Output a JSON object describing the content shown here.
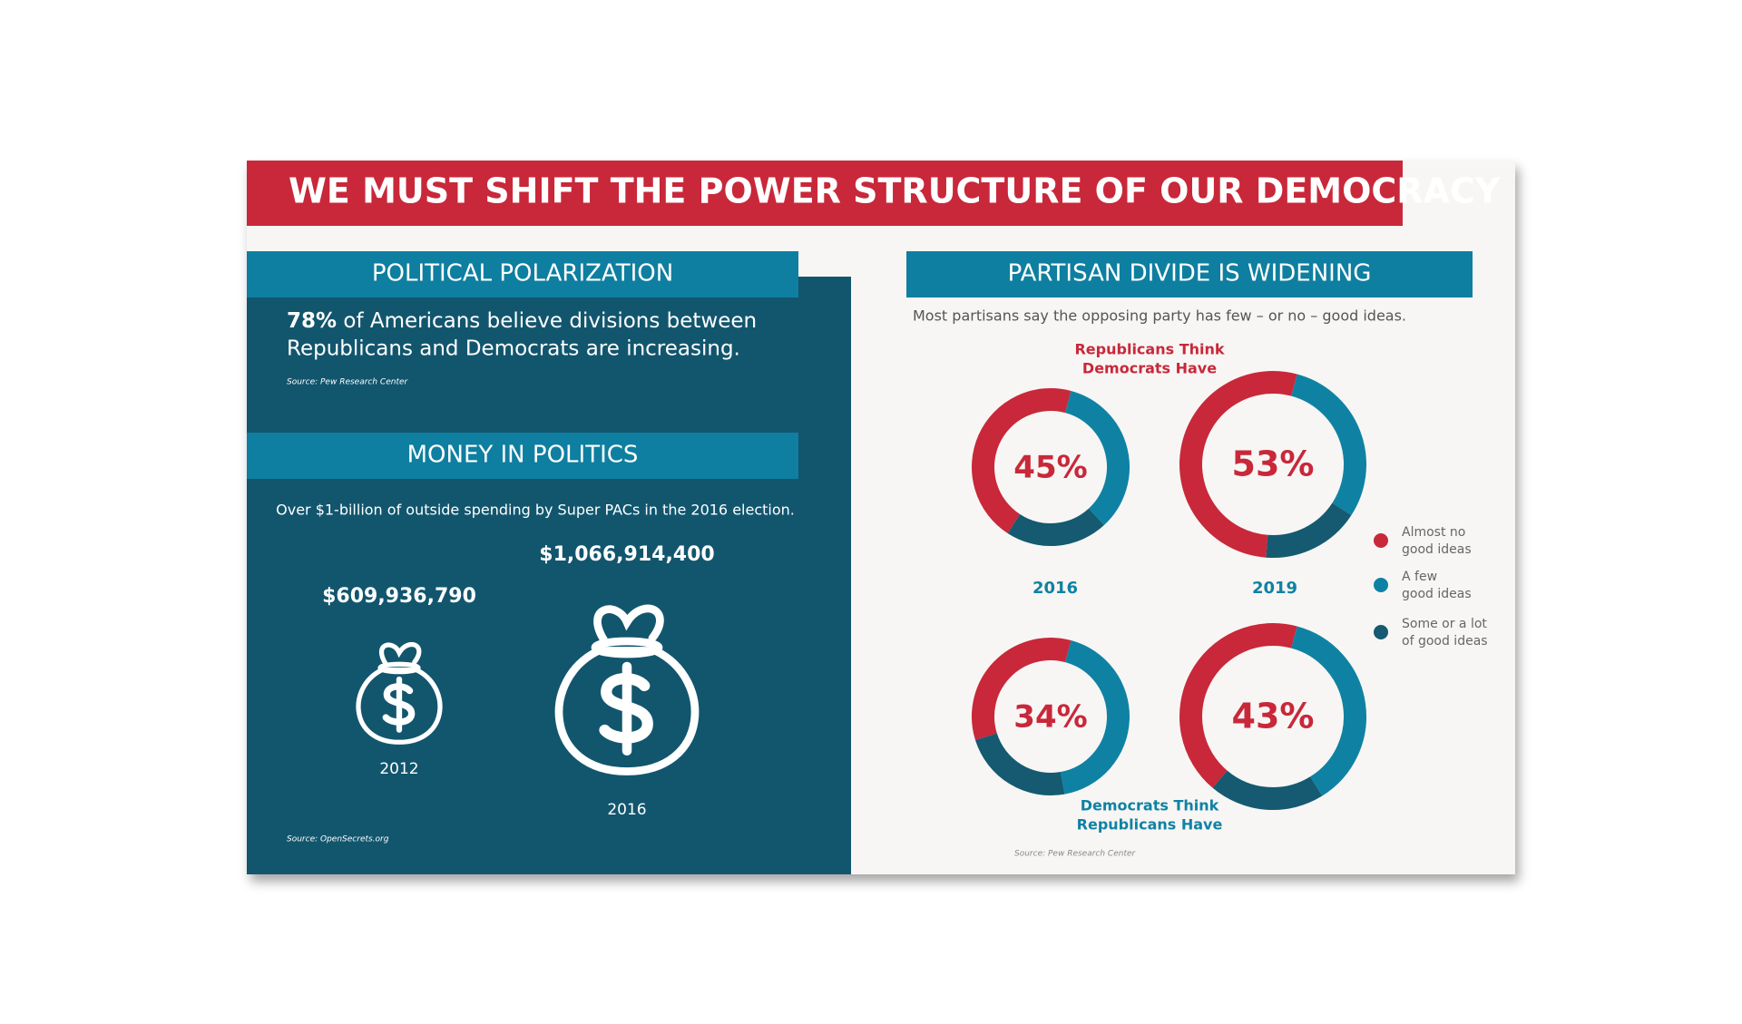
{
  "title": "WE MUST SHIFT THE POWER STRUCTURE OF OUR DEMOCRACY",
  "polarization": {
    "heading": "POLITICAL POLARIZATION",
    "stat": "78%",
    "lines": [
      "of Americans believe divisions between",
      "Republicans and Democrats are increasing."
    ],
    "source": "Source: Pew Research Center"
  },
  "money": {
    "heading": "MONEY IN POLITICS",
    "text": "Over $1-billion of outside spending by Super PACs in the 2016 election.",
    "amounts": [
      {
        "label": "$609,936,790",
        "year": "2012"
      },
      {
        "label": "$1,066,914,400",
        "year": "2016"
      }
    ],
    "source": "Source: OpenSecrets.org"
  },
  "partisan": {
    "heading": "PARTISAN DIVIDE IS WIDENING",
    "subtitle": "Most partisans say the opposing party has few – or no – good ideas.",
    "group_labels": [
      [
        "Republicans Think",
        "Democrats Have"
      ],
      [
        "Democrats Think",
        "Republicans Have"
      ]
    ],
    "years": [
      "2016",
      "2019"
    ],
    "colors": [
      "#c8283a",
      "#0f82a3",
      "#155a70"
    ],
    "donuts": [
      {
        "values": [
          45,
          34,
          21
        ],
        "value_labels": [
          "45%"
        ]
      },
      {
        "values": [
          53,
          30,
          17
        ],
        "value_labels": [
          "53%"
        ]
      },
      {
        "values": [
          34,
          43,
          23
        ],
        "value_labels": [
          "34%"
        ]
      },
      {
        "values": [
          43,
          37,
          20
        ],
        "value_labels": [
          "43%"
        ]
      }
    ],
    "legend": [
      [
        "Almost no",
        "good ideas"
      ],
      [
        "A few",
        "good ideas"
      ],
      [
        "Some or a lot",
        "of good ideas"
      ]
    ],
    "source": "Source: Pew Research Center"
  }
}
